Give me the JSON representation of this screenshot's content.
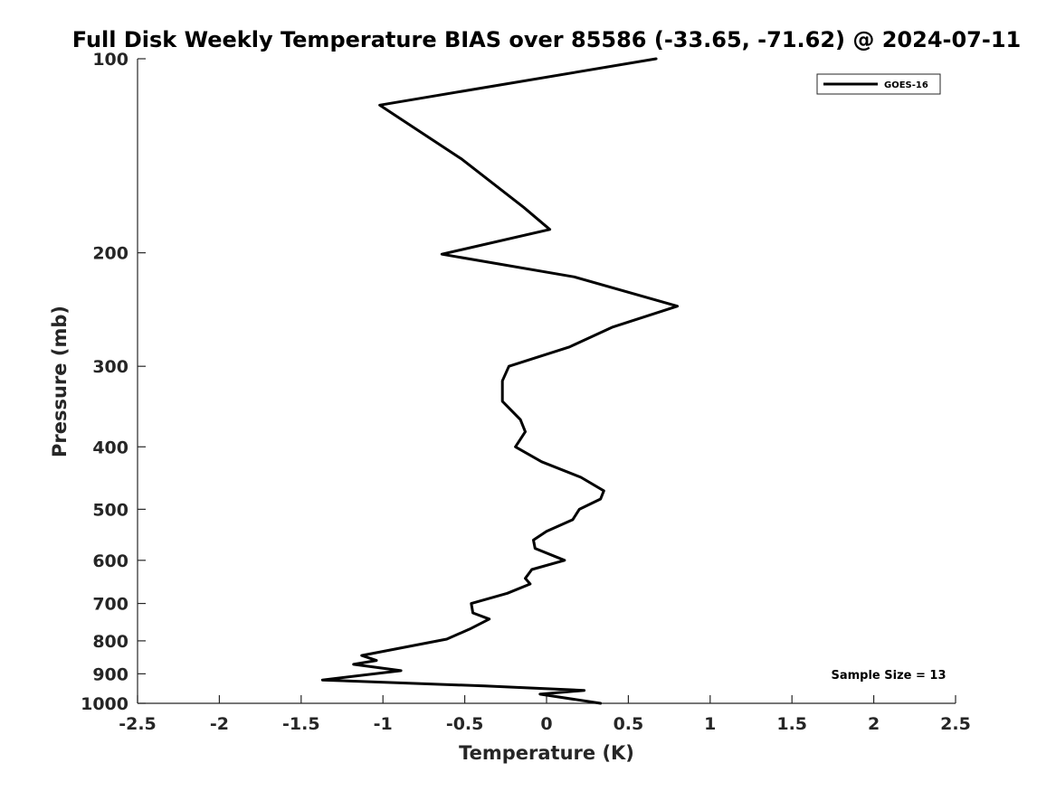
{
  "chart_data": {
    "type": "line",
    "title": "Full Disk Weekly Temperature BIAS over 85586 (-33.65, -71.62) @ 2024-07-11",
    "xlabel": "Temperature (K)",
    "ylabel": "Pressure (mb)",
    "xlim": [
      -2.5,
      2.5
    ],
    "ylim": [
      100,
      1000
    ],
    "y_scale": "log",
    "y_reversed": true,
    "x_ticks": [
      "-2.5",
      "-2",
      "-1.5",
      "-1",
      "-0.5",
      "0",
      "0.5",
      "1",
      "1.5",
      "2",
      "2.5"
    ],
    "x_tick_values": [
      -2.5,
      -2,
      -1.5,
      -1,
      -0.5,
      0,
      0.5,
      1,
      1.5,
      2,
      2.5
    ],
    "y_ticks": [
      "100",
      "200",
      "300",
      "400",
      "500",
      "600",
      "700",
      "800",
      "900",
      "1000"
    ],
    "y_tick_values": [
      100,
      200,
      300,
      400,
      500,
      600,
      700,
      800,
      900,
      1000
    ],
    "grid": false,
    "legend_position": "top-right",
    "series": [
      {
        "name": "GOES-16",
        "color": "#000000",
        "points": [
          {
            "x": 0.67,
            "p": 100
          },
          {
            "x": -1.02,
            "p": 118
          },
          {
            "x": -0.52,
            "p": 143
          },
          {
            "x": -0.14,
            "p": 170
          },
          {
            "x": 0.02,
            "p": 184
          },
          {
            "x": -0.64,
            "p": 201
          },
          {
            "x": 0.17,
            "p": 218
          },
          {
            "x": 0.8,
            "p": 242
          },
          {
            "x": 0.4,
            "p": 261
          },
          {
            "x": 0.14,
            "p": 280
          },
          {
            "x": -0.23,
            "p": 300
          },
          {
            "x": -0.27,
            "p": 316
          },
          {
            "x": -0.27,
            "p": 340
          },
          {
            "x": -0.16,
            "p": 363
          },
          {
            "x": -0.13,
            "p": 379
          },
          {
            "x": -0.19,
            "p": 400
          },
          {
            "x": -0.03,
            "p": 422
          },
          {
            "x": 0.21,
            "p": 446
          },
          {
            "x": 0.35,
            "p": 468
          },
          {
            "x": 0.33,
            "p": 482
          },
          {
            "x": 0.2,
            "p": 500
          },
          {
            "x": 0.16,
            "p": 519
          },
          {
            "x": 0.0,
            "p": 541
          },
          {
            "x": -0.08,
            "p": 558
          },
          {
            "x": -0.07,
            "p": 575
          },
          {
            "x": 0.11,
            "p": 600
          },
          {
            "x": -0.09,
            "p": 620
          },
          {
            "x": -0.13,
            "p": 640
          },
          {
            "x": -0.1,
            "p": 653
          },
          {
            "x": -0.24,
            "p": 675
          },
          {
            "x": -0.46,
            "p": 700
          },
          {
            "x": -0.45,
            "p": 724
          },
          {
            "x": -0.35,
            "p": 740
          },
          {
            "x": -0.47,
            "p": 767
          },
          {
            "x": -0.61,
            "p": 795
          },
          {
            "x": -1.13,
            "p": 843
          },
          {
            "x": -1.04,
            "p": 858
          },
          {
            "x": -1.18,
            "p": 870
          },
          {
            "x": -0.89,
            "p": 890
          },
          {
            "x": -1.37,
            "p": 920
          },
          {
            "x": -0.38,
            "p": 940
          },
          {
            "x": 0.23,
            "p": 955
          },
          {
            "x": -0.04,
            "p": 968
          },
          {
            "x": 0.33,
            "p": 1000
          }
        ]
      }
    ],
    "annotations": [
      {
        "text": "Sample Size = 13",
        "position": "bottom-right"
      }
    ]
  }
}
